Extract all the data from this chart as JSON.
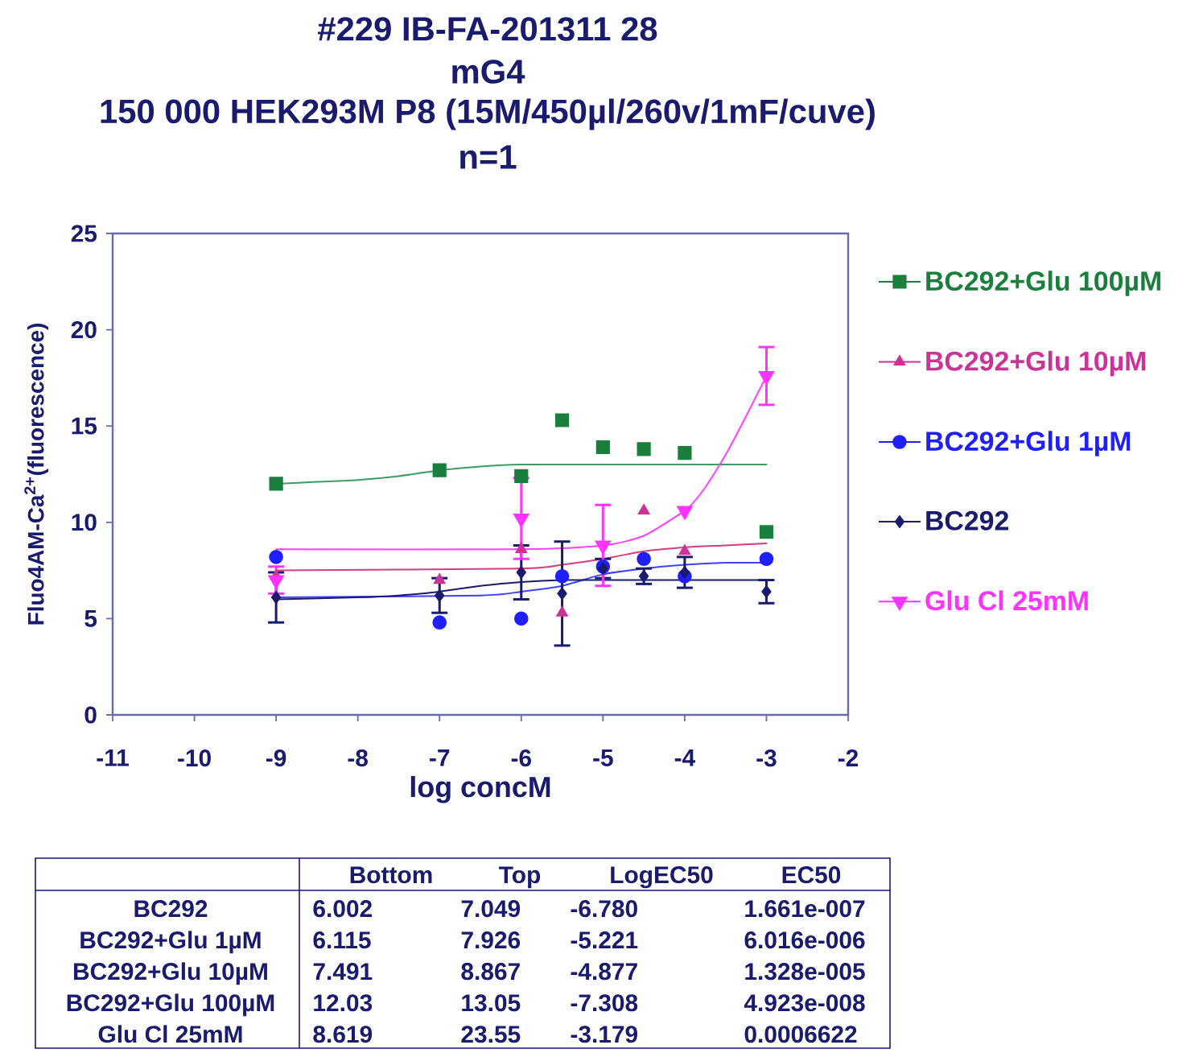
{
  "chart_data": {
    "type": "scatter",
    "title": [
      "#229 IB-FA-201311 28",
      "mG4",
      "150 000 HEK293M  P8  (15M/450µl/260v/1mF/cuve)",
      "n=1"
    ],
    "xlabel": "log concM",
    "ylabel": "Fluo4AM-Ca$^{2+}$(fluorescence)",
    "xlim": [
      -11,
      -2
    ],
    "ylim": [
      0,
      25
    ],
    "xticks": [
      -11,
      -10,
      -9,
      -8,
      -7,
      -6,
      -5,
      -4,
      -3,
      -2
    ],
    "yticks": [
      0,
      5,
      10,
      15,
      20,
      25
    ],
    "legend": "right",
    "x": [
      -9,
      -7,
      -6,
      -5.5,
      -5,
      -4.5,
      -4,
      -3
    ],
    "series": [
      {
        "type": "line",
        "color": "#3d9b63",
        "x": [
          -9,
          -8.5,
          -8,
          -7.5,
          -7,
          -6.5,
          -6,
          -5,
          -3
        ],
        "values": [
          12.0,
          12.1,
          12.2,
          12.4,
          12.7,
          12.9,
          13.0,
          13.0,
          13.0
        ]
      },
      {
        "type": "line",
        "color": "#d04080",
        "x": [
          -9,
          -6,
          -5.5,
          -5,
          -4.5,
          -4,
          -3.5,
          -3
        ],
        "values": [
          7.5,
          7.6,
          7.8,
          8.1,
          8.5,
          8.7,
          8.8,
          8.9
        ]
      },
      {
        "type": "line",
        "color": "#4040ff",
        "x": [
          -9,
          -6.5,
          -6,
          -5.5,
          -5,
          -4.5,
          -4,
          -3.5,
          -3
        ],
        "values": [
          6.1,
          6.2,
          6.4,
          6.7,
          7.3,
          7.6,
          7.8,
          7.9,
          7.9
        ]
      },
      {
        "type": "line",
        "color": "#1a1a6e",
        "x": [
          -9,
          -8,
          -7.5,
          -7,
          -6.5,
          -6,
          -5.5,
          -5,
          -3
        ],
        "values": [
          6.0,
          6.1,
          6.2,
          6.4,
          6.7,
          6.9,
          7.0,
          7.0,
          7.0
        ]
      },
      {
        "type": "line",
        "color": "#ff40ff",
        "x": [
          -9,
          -6,
          -5,
          -4.5,
          -4,
          -3.9,
          -3.75,
          -3.5,
          -3.25,
          -3
        ],
        "values": [
          8.6,
          8.6,
          8.8,
          9.3,
          10.6,
          11.0,
          11.8,
          13.5,
          15.5,
          17.6
        ]
      },
      {
        "name": "BC292+Glu 100µM",
        "marker": "square",
        "color": "#1a7f3c",
        "values": [
          12.0,
          12.7,
          12.4,
          15.3,
          13.9,
          13.8,
          13.6,
          9.5
        ]
      },
      {
        "name": "BC292+Glu 10µM",
        "marker": "triangle",
        "color": "#cc3399",
        "x": [
          -9,
          -7,
          -6,
          -5.5,
          -4.5,
          -4
        ],
        "values": [
          7.2,
          7.0,
          8.6,
          5.3,
          10.6,
          8.5
        ]
      },
      {
        "name": "BC292+Glu 1µM",
        "marker": "circle",
        "color": "#1f1fff",
        "values": [
          8.2,
          4.8,
          5.0,
          7.2,
          7.7,
          8.1,
          7.2,
          8.1
        ]
      },
      {
        "name": "BC292",
        "marker": "diamond",
        "color": "#1a1a6e",
        "values": [
          6.1,
          6.2,
          7.4,
          6.3,
          7.6,
          7.2,
          7.4,
          6.4
        ],
        "errors": [
          1.3,
          0.9,
          1.4,
          2.7,
          0.5,
          0.4,
          0.8,
          0.6
        ]
      },
      {
        "name": "Glu  Cl 25mM",
        "marker": "triangle-down",
        "color": "#ff33ff",
        "x": [
          -9,
          -6,
          -5,
          -4,
          -3
        ],
        "values": [
          7.0,
          10.2,
          8.8,
          10.6,
          17.6
        ],
        "errors": [
          0.7,
          2.1,
          2.1,
          null,
          1.5
        ]
      }
    ],
    "annotations": [
      "Bottom",
      "Top",
      "LogEC50",
      "EC50",
      "BC292",
      "6.002",
      "7.049",
      "-6.780",
      "1.661e-007",
      "BC292+Glu 1µM",
      "6.115",
      "7.926",
      "-5.221",
      "6.016e-006",
      "BC292+Glu 10µM",
      "7.491",
      "8.867",
      "-4.877",
      "1.328e-005",
      "BC292+Glu 100µM",
      "12.03",
      "13.05",
      "-7.308",
      "4.923e-008",
      "Glu  Cl 25mM",
      "8.619",
      "23.55",
      "-3.179",
      "0.0006622"
    ]
  }
}
